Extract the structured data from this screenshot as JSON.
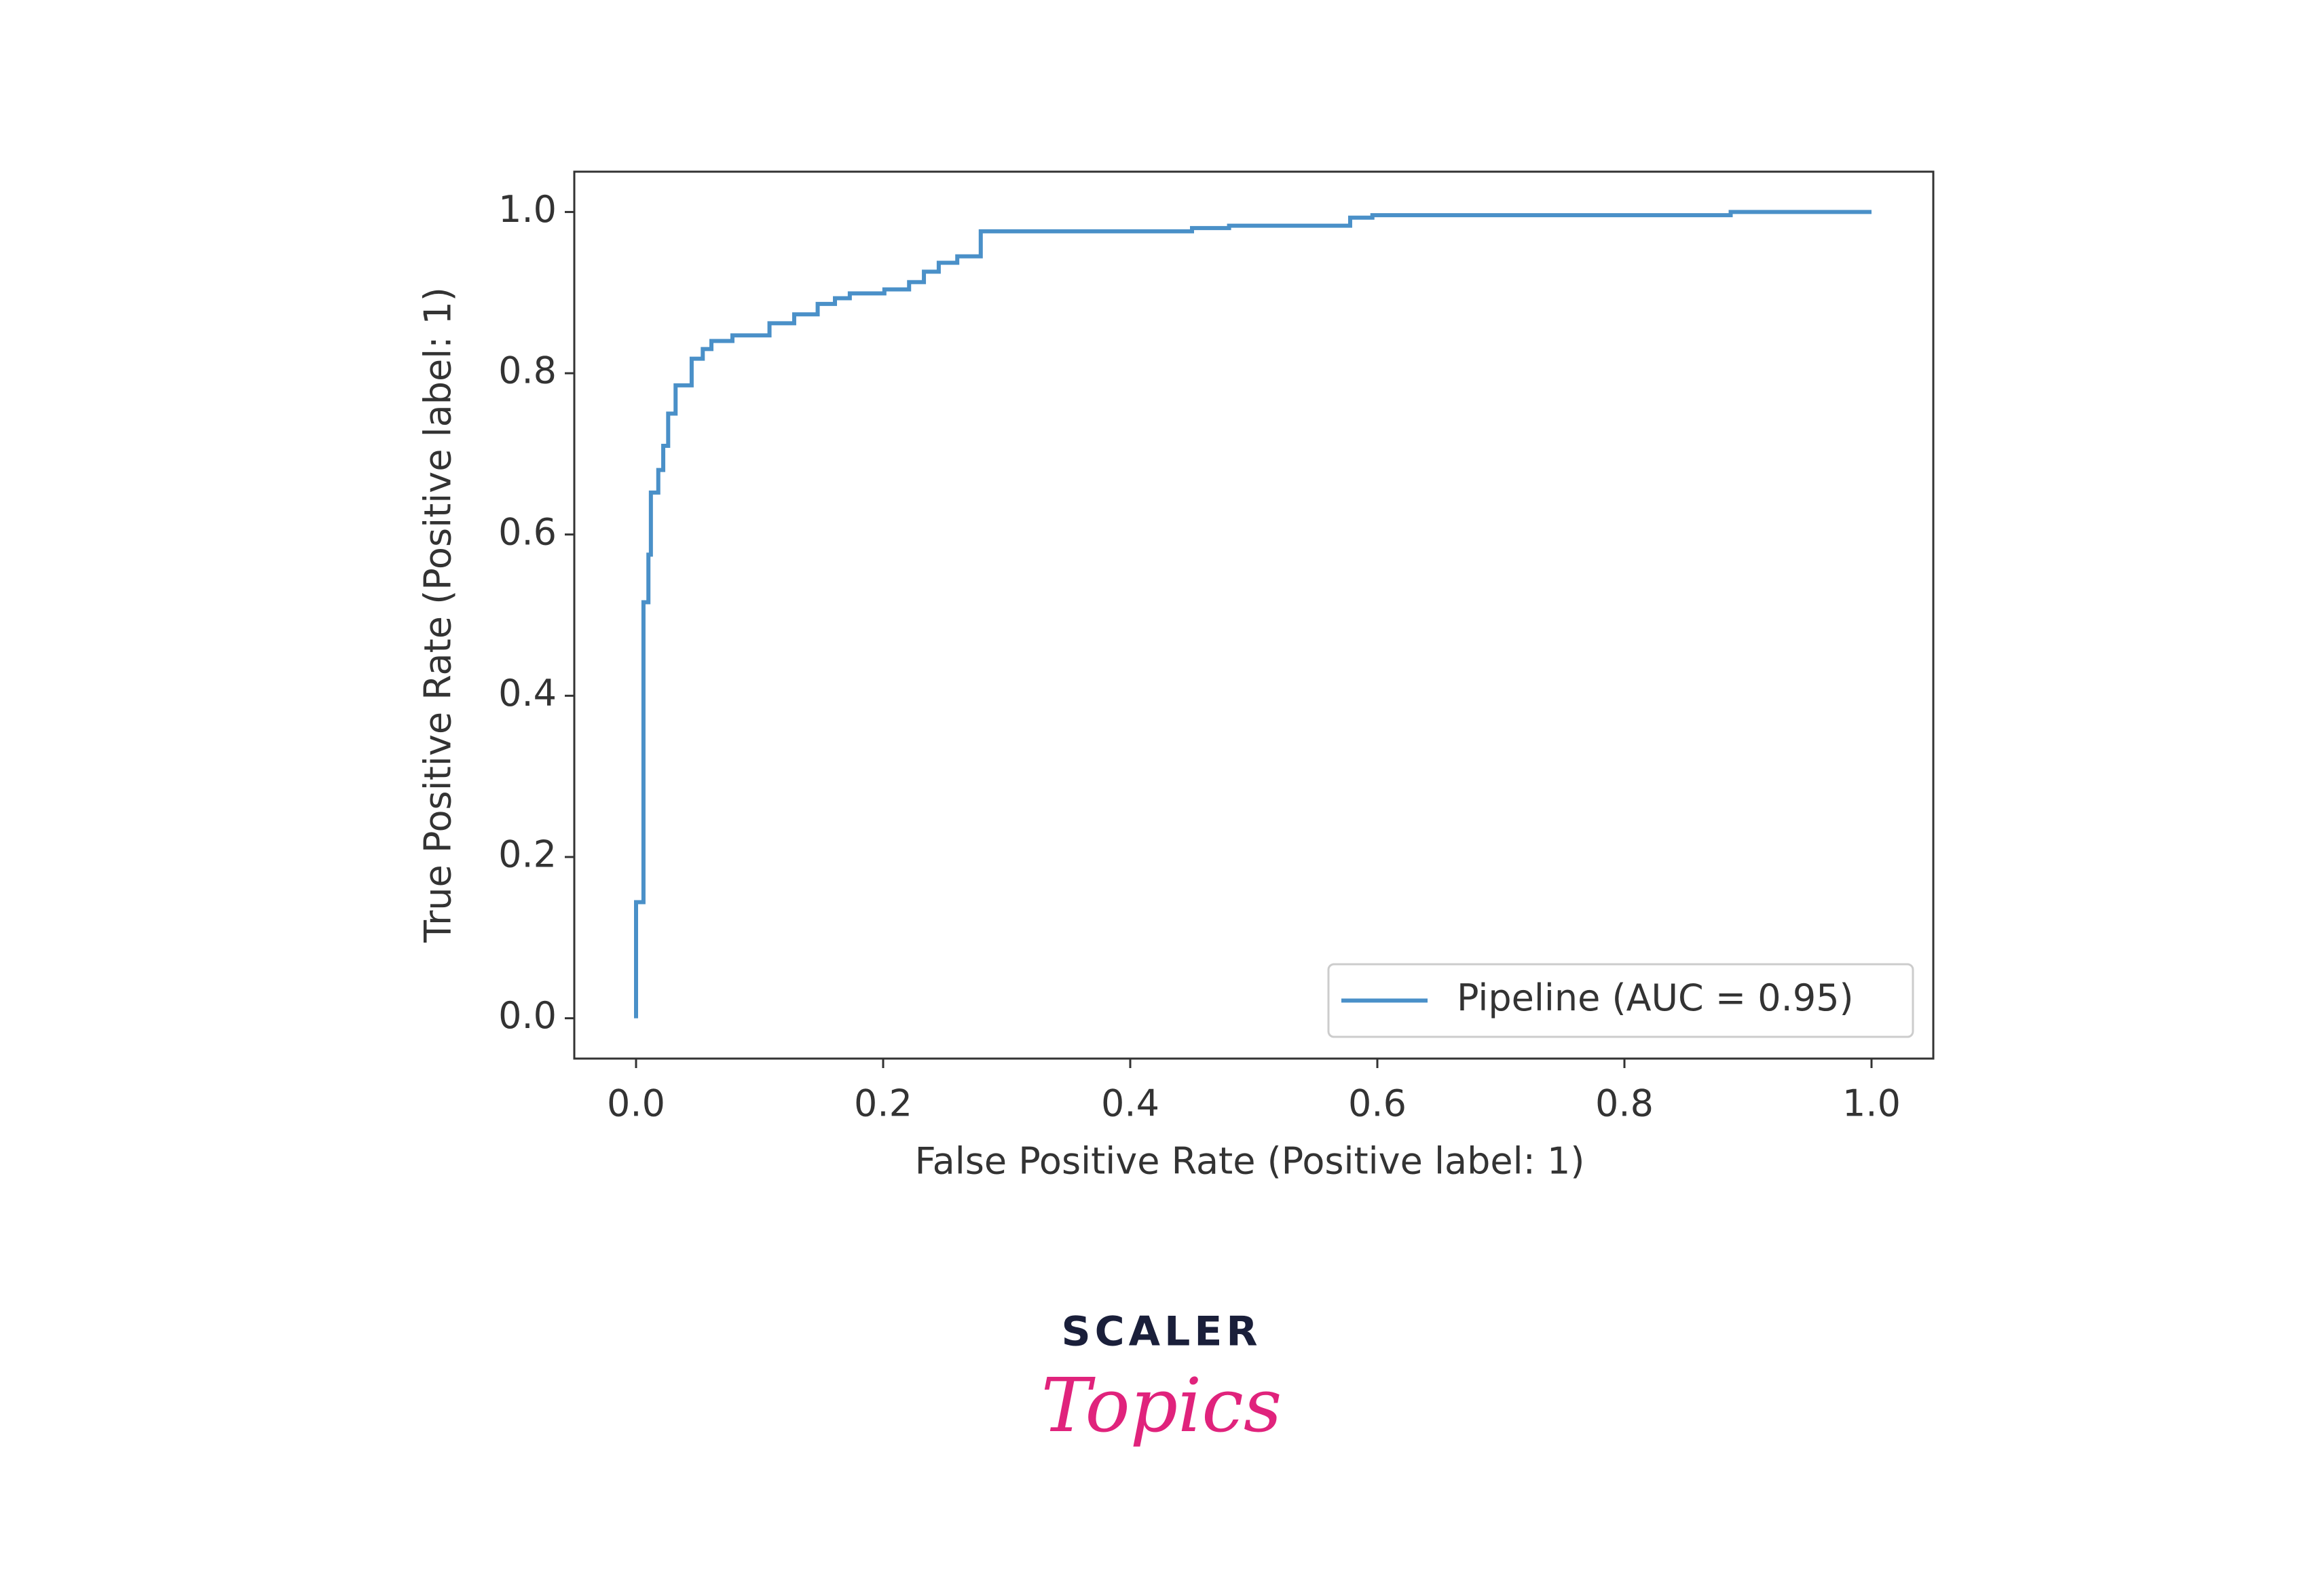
{
  "chart_data": {
    "type": "line",
    "xlabel": "False Positive Rate (Positive label: 1)",
    "ylabel": "True Positive Rate (Positive label: 1)",
    "x": [
      0,
      0,
      0.006,
      0.006,
      0.01,
      0.01,
      0.012,
      0.012,
      0.018,
      0.018,
      0.022,
      0.022,
      0.026,
      0.026,
      0.032,
      0.032,
      0.045,
      0.045,
      0.054,
      0.054,
      0.061,
      0.061,
      0.078,
      0.078,
      0.108,
      0.108,
      0.128,
      0.128,
      0.147,
      0.147,
      0.161,
      0.161,
      0.173,
      0.173,
      0.201,
      0.201,
      0.221,
      0.221,
      0.233,
      0.233,
      0.245,
      0.245,
      0.26,
      0.26,
      0.279,
      0.279,
      0.45,
      0.45,
      0.48,
      0.48,
      0.578,
      0.578,
      0.596,
      0.596,
      0.886,
      0.886,
      1
    ],
    "series": [
      {
        "name": "Pipeline (AUC = 0.95)",
        "color": "#4a90c8",
        "values": [
          0,
          0.144,
          0.144,
          0.516,
          0.516,
          0.575,
          0.575,
          0.652,
          0.652,
          0.68,
          0.68,
          0.71,
          0.71,
          0.75,
          0.75,
          0.785,
          0.785,
          0.818,
          0.818,
          0.83,
          0.83,
          0.84,
          0.84,
          0.847,
          0.847,
          0.862,
          0.862,
          0.873,
          0.873,
          0.886,
          0.886,
          0.893,
          0.893,
          0.899,
          0.899,
          0.904,
          0.904,
          0.913,
          0.913,
          0.926,
          0.926,
          0.937,
          0.937,
          0.945,
          0.945,
          0.976,
          0.976,
          0.98,
          0.98,
          0.983,
          0.983,
          0.993,
          0.993,
          0.996,
          0.996,
          1,
          1
        ]
      }
    ],
    "xlim": [
      -0.05,
      1.05
    ],
    "ylim": [
      -0.05,
      1.05
    ],
    "xticks": [
      {
        "value": 0,
        "label": "0.0"
      },
      0.2,
      0.4,
      0.6,
      0.8,
      {
        "value": 1,
        "label": "1.0"
      }
    ],
    "yticks": [
      {
        "value": 0,
        "label": "0.0"
      },
      0.2,
      0.4,
      0.6,
      0.8,
      {
        "value": 1,
        "label": "1.0"
      }
    ],
    "grid": false,
    "legend": "lower right"
  },
  "logo": {
    "brand": "SCALER",
    "product": "Topics"
  }
}
